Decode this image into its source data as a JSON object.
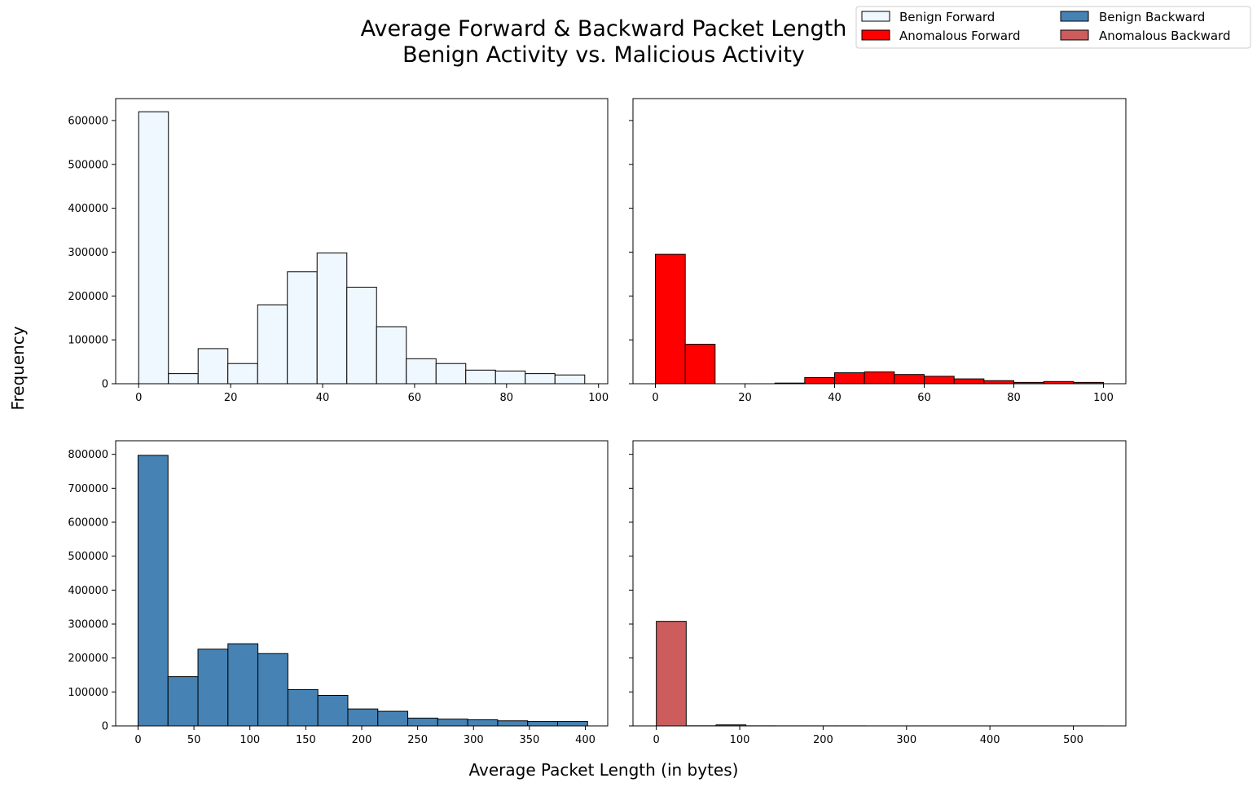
{
  "chart_data": {
    "type": "bar",
    "title": "Average Forward & Backward Packet Length\nBenign Activity vs. Malicious Activity",
    "title_lines": [
      "Average Forward & Backward Packet Length",
      "Benign Activity vs. Malicious Activity"
    ],
    "xlabel": "Average Packet Length (in bytes)",
    "ylabel": "Frequency",
    "grid": false,
    "legend": {
      "placement": "top-right",
      "columns": 2,
      "entries": [
        {
          "name": "Benign Forward",
          "color": "#f0f8ff"
        },
        {
          "name": "Benign Backward",
          "color": "#4682b4"
        },
        {
          "name": "Anomalous Forward",
          "color": "#ff0000"
        },
        {
          "name": "Anomalous Backward",
          "color": "#cd5c5c"
        }
      ]
    },
    "panels": [
      {
        "name": "Benign Forward",
        "color": "#f0f8ff",
        "xlim": [
          -5,
          102
        ],
        "ylim": [
          0,
          650000
        ],
        "xticks": [
          0,
          20,
          40,
          60,
          80,
          100
        ],
        "yticks": [
          0,
          100000,
          200000,
          300000,
          400000,
          500000,
          600000
        ],
        "ytick_labels": [
          "0",
          "100000",
          "200000",
          "300000",
          "400000",
          "500000",
          "600000"
        ],
        "bin_edges": [
          0,
          6.47,
          12.93,
          19.4,
          25.87,
          32.33,
          38.8,
          45.27,
          51.73,
          58.2,
          64.67,
          71.13,
          77.6,
          84.07,
          90.53,
          97
        ],
        "values": [
          620000,
          23000,
          80000,
          46000,
          180000,
          255000,
          298000,
          220000,
          130000,
          57000,
          46000,
          31000,
          29000,
          23000,
          20000
        ]
      },
      {
        "name": "Anomalous Forward",
        "color": "#ff0000",
        "xlim": [
          -5,
          105
        ],
        "ylim": [
          0,
          650000
        ],
        "xticks": [
          0,
          20,
          40,
          60,
          80,
          100
        ],
        "yticks": [
          0,
          100000,
          200000,
          300000,
          400000,
          500000,
          600000
        ],
        "ytick_labels": [],
        "bin_edges": [
          0,
          6.67,
          13.33,
          20,
          26.67,
          33.33,
          40,
          46.67,
          53.33,
          60,
          66.67,
          73.33,
          80,
          86.67,
          93.33,
          100
        ],
        "values": [
          295000,
          90000,
          0,
          0,
          1500,
          14000,
          25000,
          27000,
          21000,
          17000,
          11000,
          7000,
          3000,
          5000,
          3000
        ]
      },
      {
        "name": "Benign Backward",
        "color": "#4682b4",
        "xlim": [
          -20,
          420
        ],
        "ylim": [
          0,
          840000
        ],
        "xticks": [
          0,
          50,
          100,
          150,
          200,
          250,
          300,
          350,
          400
        ],
        "yticks": [
          0,
          100000,
          200000,
          300000,
          400000,
          500000,
          600000,
          700000,
          800000
        ],
        "ytick_labels": [
          "0",
          "100000",
          "200000",
          "300000",
          "400000",
          "500000",
          "600000",
          "700000",
          "800000"
        ],
        "bin_edges": [
          0,
          26.8,
          53.6,
          80.4,
          107.2,
          134,
          160.8,
          187.6,
          214.4,
          241.2,
          268,
          294.8,
          321.6,
          348.4,
          375.2,
          402
        ],
        "values": [
          797000,
          145000,
          226000,
          242000,
          213000,
          107000,
          90000,
          50000,
          43000,
          23000,
          20000,
          18000,
          15000,
          13000,
          13000
        ]
      },
      {
        "name": "Anomalous Backward",
        "color": "#cd5c5c",
        "xlim": [
          -28,
          563
        ],
        "ylim": [
          0,
          840000
        ],
        "xticks": [
          0,
          100,
          200,
          300,
          400,
          500
        ],
        "yticks": [
          0,
          100000,
          200000,
          300000,
          400000,
          500000,
          600000,
          700000,
          800000
        ],
        "ytick_labels": [],
        "bin_edges": [
          0,
          35.8,
          71.6,
          107.4,
          143.2,
          179,
          214.8,
          250.6,
          286.4,
          322.2,
          358,
          393.8,
          429.6,
          465.4,
          501.2,
          537
        ],
        "values": [
          308000,
          400,
          3000,
          300,
          200,
          200,
          200,
          100,
          100,
          100,
          100,
          100,
          100,
          100,
          100
        ]
      }
    ]
  }
}
